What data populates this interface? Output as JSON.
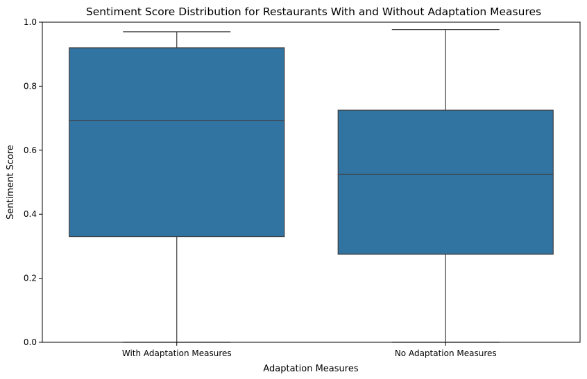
{
  "chart_data": {
    "type": "box",
    "title": "Sentiment Score Distribution for Restaurants With and Without Adaptation Measures",
    "xlabel": "Adaptation Measures",
    "ylabel": "Sentiment Score",
    "ylim": [
      0,
      1
    ],
    "yticks": [
      "0.0",
      "0.2",
      "0.4",
      "0.6",
      "0.8",
      "1.0"
    ],
    "categories": [
      "With Adaptation Measures",
      "No Adaptation Measures"
    ],
    "boxes": [
      {
        "category": "With Adaptation Measures",
        "whisker_low": 0.0,
        "q1": 0.33,
        "median": 0.693,
        "q3": 0.92,
        "whisker_high": 0.97
      },
      {
        "category": "No Adaptation Measures",
        "whisker_low": 0.0,
        "q1": 0.275,
        "median": 0.525,
        "q3": 0.725,
        "whisker_high": 0.977
      }
    ],
    "grid": false,
    "box_color": "#3274a1",
    "line_color": "#3d3d3d"
  }
}
